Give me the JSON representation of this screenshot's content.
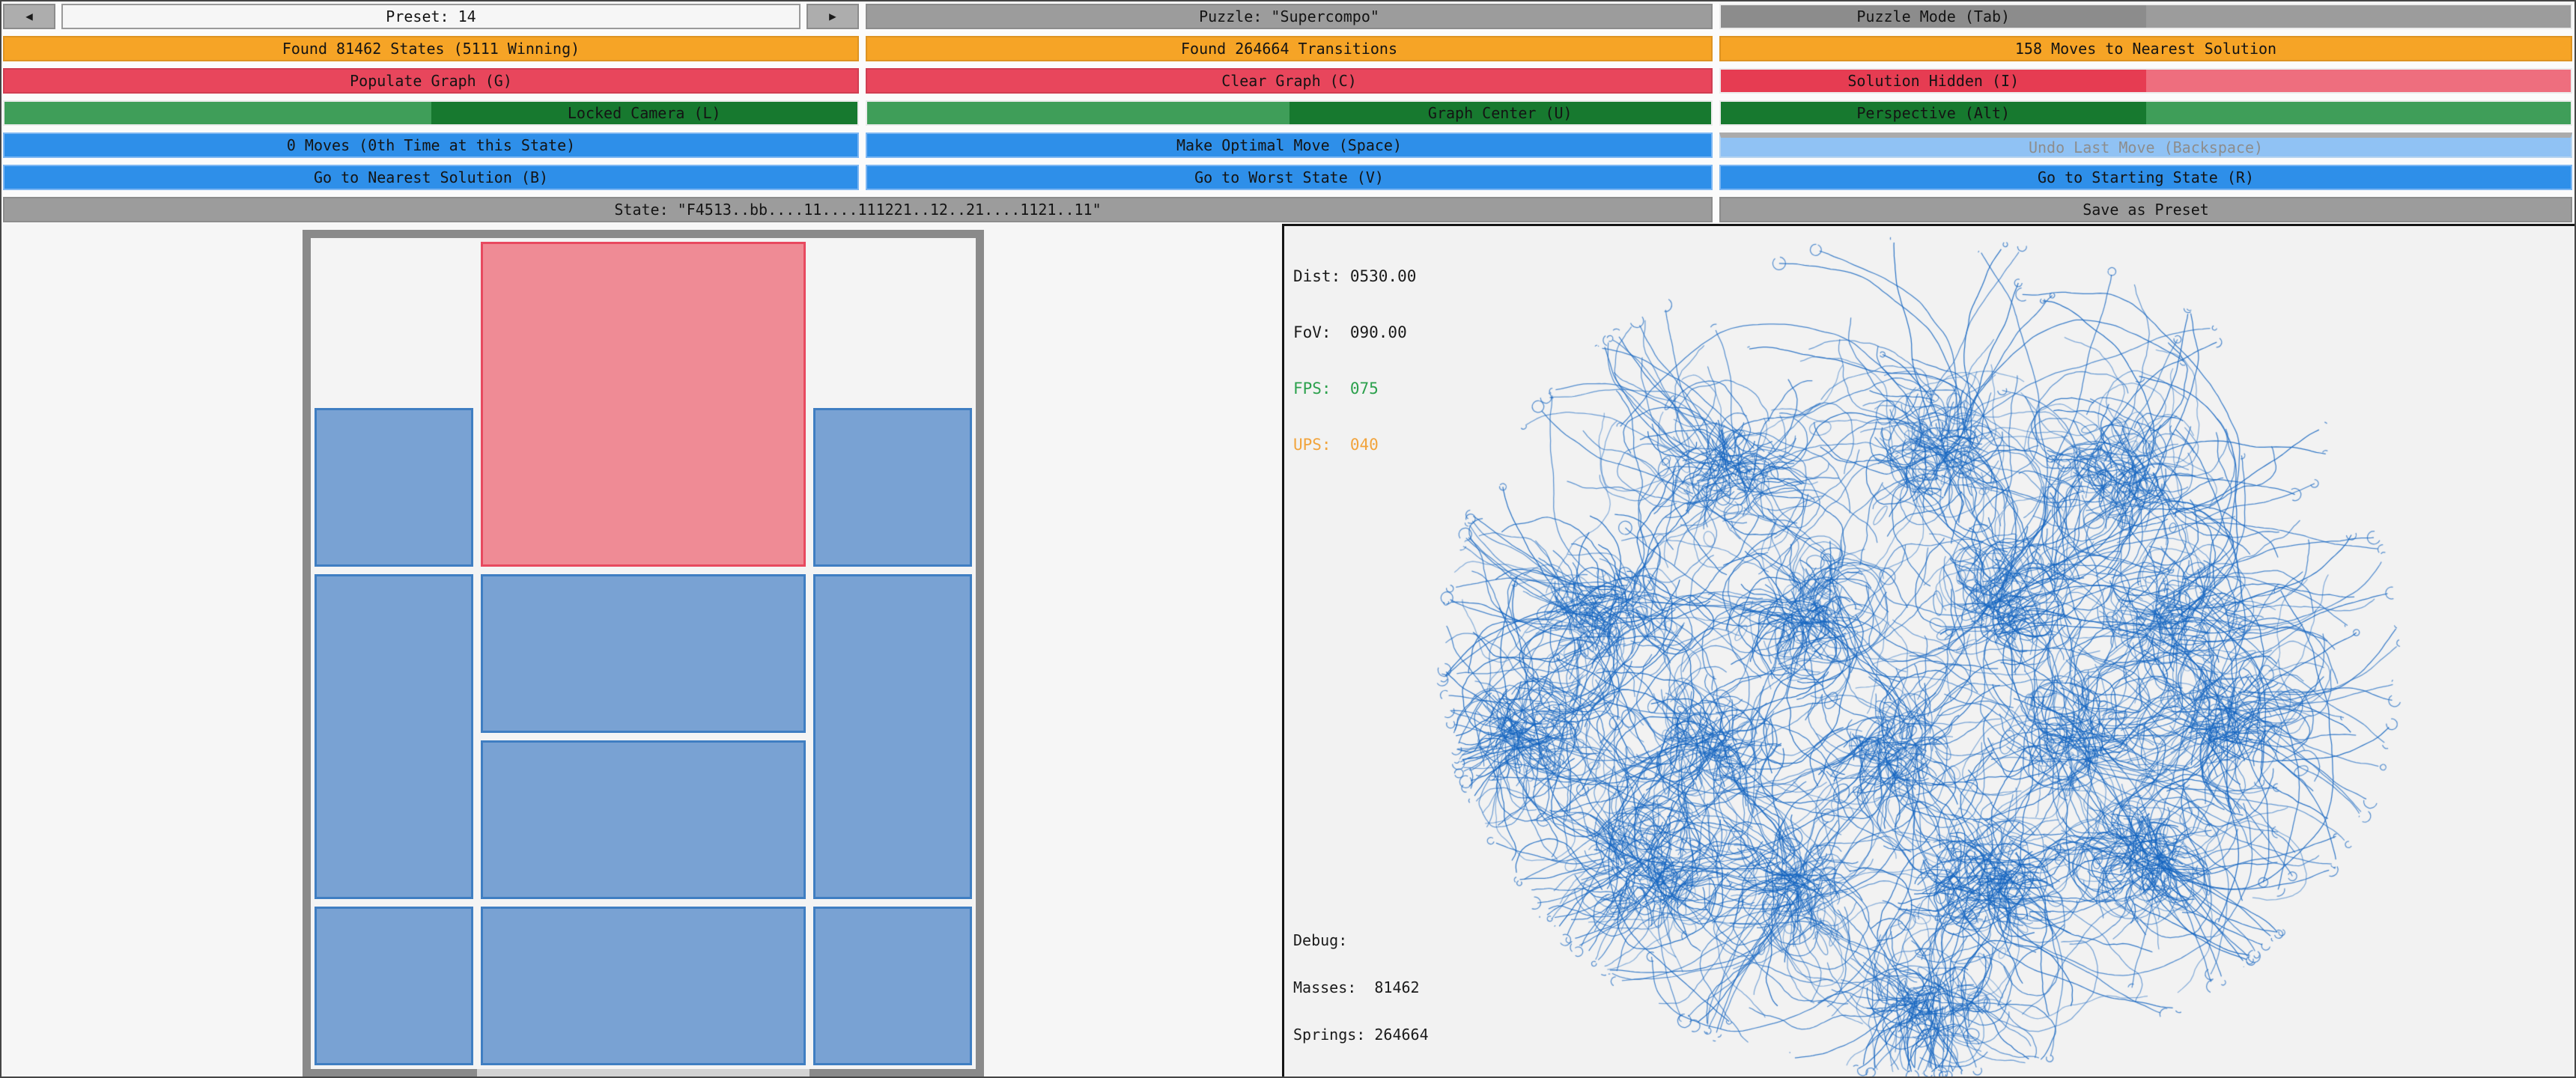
{
  "colors": {
    "orange": "#F6A426",
    "red": "#E8465C",
    "red_dark": "#E63C52",
    "red_light": "#EE6E7E",
    "green_dark": "#17792F",
    "green_light": "#3F9E59",
    "blue": "#2E8FE9",
    "blue_border": "#7CB6F2",
    "blue_disabled": "#90C2F4",
    "gray": "#9C9C9C",
    "gray_dark": "#8C8C8C",
    "frame_gray": "#8A8A8A",
    "exit_gray": "#D2D2D2",
    "block_blue": "#79A2D3",
    "block_blue_border": "#3F7EC2",
    "block_red": "#EF8B95",
    "block_red_border": "#E8495F",
    "graph_blue": "#1565C0",
    "fps_green": "#2BA04C",
    "ups_orange": "#F2A43C"
  },
  "toolbar": {
    "preset": {
      "label": "Preset: 14",
      "prev_icon": "◀",
      "next_icon": "▶"
    },
    "puzzle": {
      "label": "Puzzle: \"Supercompo\""
    },
    "puzzle_mode": {
      "label": "Puzzle Mode (Tab)"
    },
    "states": {
      "label": "Found 81462 States (5111 Winning)"
    },
    "transitions": {
      "label": "Found 264664 Transitions"
    },
    "moves_to_solution": {
      "label": "158 Moves to Nearest Solution"
    },
    "populate": {
      "label": "Populate Graph (G)"
    },
    "clear": {
      "label": "Clear Graph (C)"
    },
    "solution_hidden": {
      "label": "Solution Hidden (I)"
    },
    "locked_camera": {
      "label": "Locked Camera (L)"
    },
    "graph_center": {
      "label": "Graph Center (U)"
    },
    "perspective": {
      "label": "Perspective (Alt)"
    },
    "moves": {
      "label": "0 Moves (0th Time at this State)"
    },
    "optimal": {
      "label": "Make Optimal Move (Space)"
    },
    "undo": {
      "label": "Undo Last Move (Backspace)"
    },
    "nearest": {
      "label": "Go to Nearest Solution (B)"
    },
    "worst": {
      "label": "Go to Worst State (V)"
    },
    "start": {
      "label": "Go to Starting State (R)"
    },
    "state": {
      "label": "State: \"F4513..bb....11....111221..12..21....1121..11\""
    },
    "save_preset": {
      "label": "Save as Preset"
    }
  },
  "board": {
    "grid_cols": 4,
    "grid_rows": 5,
    "exit": "bottom-center",
    "blocks": [
      {
        "color": "red",
        "col": 2,
        "row": 1,
        "w": 2,
        "h": 2
      },
      {
        "color": "blue",
        "col": 1,
        "row": 2,
        "w": 1,
        "h": 1
      },
      {
        "color": "blue",
        "col": 4,
        "row": 2,
        "w": 1,
        "h": 1
      },
      {
        "color": "blue",
        "col": 1,
        "row": 3,
        "w": 1,
        "h": 2
      },
      {
        "color": "blue",
        "col": 2,
        "row": 3,
        "w": 2,
        "h": 1
      },
      {
        "color": "blue",
        "col": 4,
        "row": 3,
        "w": 1,
        "h": 2
      },
      {
        "color": "blue",
        "col": 2,
        "row": 4,
        "w": 2,
        "h": 1
      },
      {
        "color": "blue",
        "col": 1,
        "row": 5,
        "w": 1,
        "h": 1
      },
      {
        "color": "blue",
        "col": 2,
        "row": 5,
        "w": 2,
        "h": 1
      },
      {
        "color": "blue",
        "col": 4,
        "row": 5,
        "w": 1,
        "h": 1
      }
    ]
  },
  "debug": {
    "dist": "Dist: 0530.00",
    "fov": "FoV:  090.00",
    "fps": "FPS:  075",
    "ups": "UPS:  040",
    "heading": "Debug:",
    "masses": "Masses:  81462",
    "springs": "Springs: 264664"
  }
}
